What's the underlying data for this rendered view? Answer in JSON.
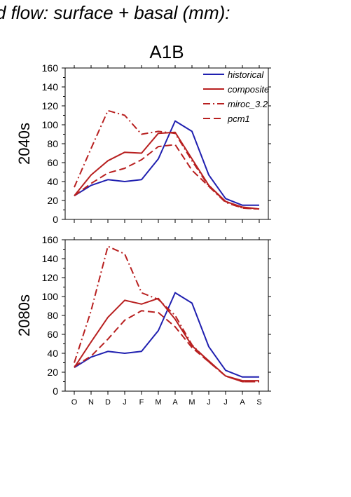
{
  "figure": {
    "title": "d flow: surface + basal (mm):",
    "scenario": "A1B"
  },
  "colors": {
    "historical": "#2020b0",
    "composite": "#b82020",
    "miroc_3.2": "#b82020",
    "pcm1": "#b82020"
  },
  "chart_data": [
    {
      "type": "line",
      "panel_label": "2040s",
      "categories": [
        "O",
        "N",
        "D",
        "J",
        "F",
        "M",
        "A",
        "M",
        "J",
        "J",
        "A",
        "S"
      ],
      "ylim": [
        0,
        160
      ],
      "yticks": [
        0,
        20,
        40,
        60,
        80,
        100,
        120,
        140,
        160
      ],
      "legend_placement": "top-right",
      "series": [
        {
          "name": "historical",
          "style": "solid",
          "color": "#2020b0",
          "values": [
            25,
            36,
            42,
            40,
            42,
            64,
            104,
            93,
            47,
            22,
            15,
            15
          ]
        },
        {
          "name": "composite",
          "style": "solid",
          "color": "#b82020",
          "values": [
            25,
            47,
            62,
            71,
            70,
            91,
            92,
            64,
            36,
            19,
            13,
            11
          ]
        },
        {
          "name": "miroc_3.2",
          "style": "dashdot",
          "color": "#b82020",
          "values": [
            34,
            75,
            115,
            110,
            90,
            93,
            91,
            62,
            35,
            18,
            12,
            11
          ]
        },
        {
          "name": "pcm1",
          "style": "dash",
          "color": "#b82020",
          "values": [
            25,
            38,
            49,
            54,
            63,
            77,
            79,
            52,
            35,
            19,
            12,
            11
          ]
        }
      ]
    },
    {
      "type": "line",
      "panel_label": "2080s",
      "categories": [
        "O",
        "N",
        "D",
        "J",
        "F",
        "M",
        "A",
        "M",
        "J",
        "J",
        "A",
        "S"
      ],
      "ylim": [
        0,
        160
      ],
      "yticks": [
        0,
        20,
        40,
        60,
        80,
        100,
        120,
        140,
        160
      ],
      "legend_placement": "none",
      "series": [
        {
          "name": "historical",
          "style": "solid",
          "color": "#2020b0",
          "values": [
            25,
            36,
            42,
            40,
            42,
            64,
            104,
            93,
            47,
            22,
            15,
            15
          ]
        },
        {
          "name": "composite",
          "style": "solid",
          "color": "#b82020",
          "values": [
            25,
            52,
            78,
            96,
            92,
            98,
            76,
            48,
            32,
            16,
            11,
            11
          ]
        },
        {
          "name": "miroc_3.2",
          "style": "dashdot",
          "color": "#b82020",
          "values": [
            30,
            85,
            153,
            145,
            104,
            97,
            80,
            49,
            31,
            16,
            10,
            10
          ]
        },
        {
          "name": "pcm1",
          "style": "dash",
          "color": "#b82020",
          "values": [
            26,
            37,
            55,
            75,
            85,
            83,
            68,
            46,
            31,
            16,
            10,
            10
          ]
        }
      ]
    }
  ]
}
